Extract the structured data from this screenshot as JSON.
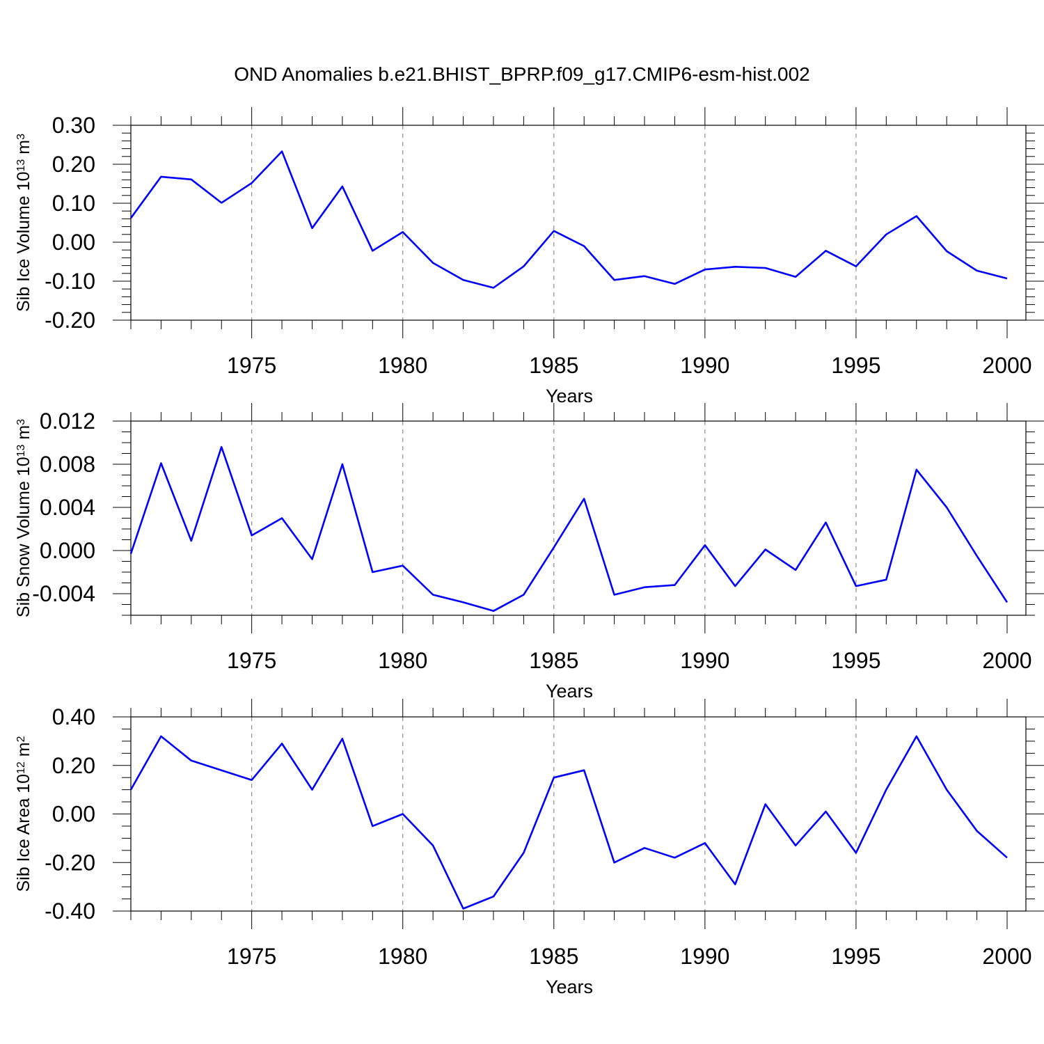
{
  "title": "OND Anomalies b.e21.BHIST_BPRP.f09_g17.CMIP6-esm-hist.002",
  "colors": {
    "line": "#0000ff",
    "grid": "#8c8c8c"
  },
  "chart_data": [
    {
      "type": "line",
      "ylabel": {
        "main": "Sib Ice Volume 10",
        "sup": "13",
        "unit": " m",
        "unit_sup": "3"
      },
      "xlabel": "Years",
      "xlim": [
        1971,
        2000
      ],
      "ylim": [
        -0.2,
        0.3
      ],
      "yticks": [
        -0.2,
        -0.1,
        0.0,
        0.1,
        0.2,
        0.3
      ],
      "ytick_labels": [
        "-0.20",
        "-0.10",
        "0.00",
        "0.10",
        "0.20",
        "0.30"
      ],
      "xticks": [
        1975,
        1980,
        1985,
        1990,
        1995,
        2000
      ],
      "xtick_labels": [
        "1975",
        "1980",
        "1985",
        "1990",
        "1995",
        "2000"
      ],
      "grid": "vertical dashed at labeled years",
      "x": [
        1971,
        1972,
        1973,
        1974,
        1975,
        1976,
        1977,
        1978,
        1979,
        1980,
        1981,
        1982,
        1983,
        1984,
        1985,
        1986,
        1987,
        1988,
        1989,
        1990,
        1991,
        1992,
        1993,
        1994,
        1995,
        1996,
        1997,
        1998,
        1999,
        2000
      ],
      "values": [
        0.062,
        0.168,
        0.161,
        0.101,
        0.152,
        0.233,
        0.036,
        0.143,
        -0.022,
        0.026,
        -0.053,
        -0.097,
        -0.117,
        -0.062,
        0.029,
        -0.01,
        -0.097,
        -0.087,
        -0.107,
        -0.07,
        -0.063,
        -0.066,
        -0.089,
        -0.022,
        -0.062,
        0.02,
        0.067,
        -0.023,
        -0.073,
        -0.093
      ]
    },
    {
      "type": "line",
      "ylabel": {
        "main": "Sib Snow Volume 10",
        "sup": "13",
        "unit": " m",
        "unit_sup": "3"
      },
      "xlabel": "Years",
      "xlim": [
        1971,
        2000
      ],
      "ylim": [
        -0.006,
        0.012
      ],
      "yticks": [
        -0.004,
        0.0,
        0.004,
        0.008,
        0.012
      ],
      "ytick_labels": [
        "-0.004",
        "0.000",
        "0.004",
        "0.008",
        "0.012"
      ],
      "xticks": [
        1975,
        1980,
        1985,
        1990,
        1995,
        2000
      ],
      "xtick_labels": [
        "1975",
        "1980",
        "1985",
        "1990",
        "1995",
        "2000"
      ],
      "grid": "vertical dashed at labeled years",
      "x": [
        1971,
        1972,
        1973,
        1974,
        1975,
        1976,
        1977,
        1978,
        1979,
        1980,
        1981,
        1982,
        1983,
        1984,
        1985,
        1986,
        1987,
        1988,
        1989,
        1990,
        1991,
        1992,
        1993,
        1994,
        1995,
        1996,
        1997,
        1998,
        1999,
        2000
      ],
      "values": [
        -0.0003,
        0.0081,
        0.0009,
        0.0096,
        0.0014,
        0.003,
        -0.0008,
        0.008,
        -0.002,
        -0.0014,
        -0.0041,
        -0.0048,
        -0.0056,
        -0.0041,
        0.0003,
        0.0048,
        -0.0041,
        -0.0034,
        -0.0032,
        0.0005,
        -0.0033,
        0.0001,
        -0.0018,
        0.0026,
        -0.0033,
        -0.0027,
        0.0075,
        0.004,
        -0.0005,
        -0.0048
      ]
    },
    {
      "type": "line",
      "ylabel": {
        "main": "Sib Ice Area 10",
        "sup": "12",
        "unit": " m",
        "unit_sup": "2"
      },
      "xlabel": "Years",
      "xlim": [
        1971,
        2000
      ],
      "ylim": [
        -0.4,
        0.4
      ],
      "yticks": [
        -0.4,
        -0.2,
        0.0,
        0.2,
        0.4
      ],
      "ytick_labels": [
        "-0.40",
        "-0.20",
        "0.00",
        "0.20",
        "0.40"
      ],
      "xticks": [
        1975,
        1980,
        1985,
        1990,
        1995,
        2000
      ],
      "xtick_labels": [
        "1975",
        "1980",
        "1985",
        "1990",
        "1995",
        "2000"
      ],
      "grid": "vertical dashed at labeled years",
      "x": [
        1971,
        1972,
        1973,
        1974,
        1975,
        1976,
        1977,
        1978,
        1979,
        1980,
        1981,
        1982,
        1983,
        1984,
        1985,
        1986,
        1987,
        1988,
        1989,
        1990,
        1991,
        1992,
        1993,
        1994,
        1995,
        1996,
        1997,
        1998,
        1999,
        2000
      ],
      "values": [
        0.1,
        0.32,
        0.22,
        0.18,
        0.14,
        0.29,
        0.1,
        0.31,
        -0.05,
        0.0,
        -0.13,
        -0.39,
        -0.34,
        -0.16,
        0.15,
        0.18,
        -0.2,
        -0.14,
        -0.18,
        -0.12,
        -0.29,
        0.04,
        -0.13,
        0.01,
        -0.16,
        0.1,
        0.32,
        0.1,
        -0.07,
        -0.18
      ]
    }
  ]
}
